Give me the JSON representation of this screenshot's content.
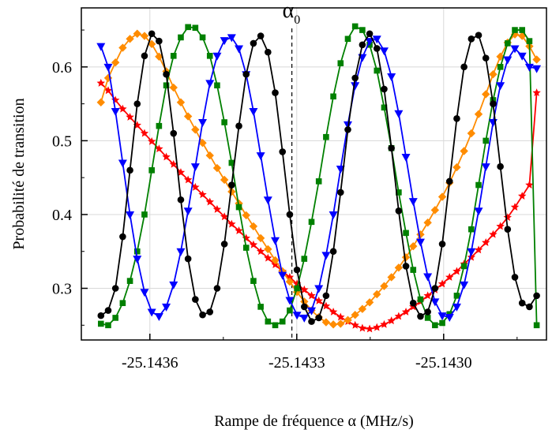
{
  "chart_data": {
    "type": "line",
    "xlabel": "Rampe de fréquence α  (MHz/s)",
    "ylabel": "Probabilité de transition",
    "xlim": [
      -25.14374,
      -25.14279
    ],
    "ylim": [
      0.23,
      0.68
    ],
    "x_ticks": [
      -25.1436,
      -25.1433,
      -25.143
    ],
    "x_tick_labels": [
      "-25.1436",
      "-25.1433",
      "-25.1430"
    ],
    "y_ticks": [
      0.3,
      0.4,
      0.5,
      0.6
    ],
    "y_tick_labels": [
      "0.3",
      "0.4",
      "0.5",
      "0.6"
    ],
    "grid": true,
    "annotation": {
      "symbol": "α",
      "subscript": "0",
      "x": -25.14331,
      "line_style": "dashed"
    },
    "x_range_data": [
      -25.1437,
      -25.14281
    ],
    "points_per_series": 61,
    "series": [
      {
        "color": "#ff0000",
        "marker": "star",
        "values": [
          0.578,
          0.568,
          0.555,
          0.543,
          0.532,
          0.521,
          0.51,
          0.499,
          0.489,
          0.478,
          0.468,
          0.457,
          0.447,
          0.437,
          0.427,
          0.417,
          0.407,
          0.397,
          0.387,
          0.378,
          0.368,
          0.359,
          0.35,
          0.341,
          0.332,
          0.323,
          0.315,
          0.306,
          0.298,
          0.29,
          0.283,
          0.276,
          0.268,
          0.261,
          0.255,
          0.25,
          0.246,
          0.245,
          0.247,
          0.251,
          0.256,
          0.262,
          0.268,
          0.275,
          0.282,
          0.29,
          0.298,
          0.306,
          0.315,
          0.323,
          0.333,
          0.342,
          0.352,
          0.362,
          0.373,
          0.384,
          0.396,
          0.41,
          0.425,
          0.44,
          0.565
        ]
      },
      {
        "color": "#ff8c00",
        "marker": "diamond",
        "values": [
          0.552,
          0.585,
          0.606,
          0.626,
          0.638,
          0.645,
          0.642,
          0.631,
          0.614,
          0.594,
          0.572,
          0.552,
          0.533,
          0.515,
          0.497,
          0.48,
          0.463,
          0.447,
          0.431,
          0.415,
          0.399,
          0.384,
          0.368,
          0.353,
          0.338,
          0.323,
          0.309,
          0.295,
          0.282,
          0.27,
          0.261,
          0.254,
          0.251,
          0.252,
          0.257,
          0.264,
          0.272,
          0.281,
          0.292,
          0.303,
          0.315,
          0.328,
          0.342,
          0.357,
          0.373,
          0.389,
          0.406,
          0.424,
          0.443,
          0.464,
          0.486,
          0.51,
          0.536,
          0.563,
          0.59,
          0.614,
          0.633,
          0.644,
          0.642,
          0.628,
          0.61
        ]
      },
      {
        "color": "#008000",
        "marker": "square",
        "values": [
          0.252,
          0.25,
          0.26,
          0.28,
          0.31,
          0.35,
          0.4,
          0.46,
          0.52,
          0.575,
          0.615,
          0.64,
          0.654,
          0.653,
          0.64,
          0.615,
          0.575,
          0.525,
          0.47,
          0.41,
          0.355,
          0.31,
          0.275,
          0.255,
          0.25,
          0.255,
          0.27,
          0.3,
          0.34,
          0.39,
          0.445,
          0.505,
          0.56,
          0.605,
          0.638,
          0.655,
          0.65,
          0.63,
          0.595,
          0.545,
          0.49,
          0.43,
          0.375,
          0.325,
          0.285,
          0.26,
          0.25,
          0.253,
          0.265,
          0.29,
          0.33,
          0.38,
          0.44,
          0.5,
          0.555,
          0.6,
          0.632,
          0.65,
          0.65,
          0.635,
          0.25
        ]
      },
      {
        "color": "#0000ff",
        "marker": "triangle-down",
        "values": [
          0.628,
          0.6,
          0.54,
          0.47,
          0.4,
          0.34,
          0.295,
          0.268,
          0.262,
          0.275,
          0.305,
          0.35,
          0.405,
          0.465,
          0.525,
          0.578,
          0.615,
          0.636,
          0.64,
          0.625,
          0.59,
          0.54,
          0.48,
          0.42,
          0.365,
          0.318,
          0.284,
          0.264,
          0.26,
          0.27,
          0.3,
          0.345,
          0.4,
          0.462,
          0.522,
          0.575,
          0.613,
          0.635,
          0.638,
          0.622,
          0.587,
          0.537,
          0.478,
          0.418,
          0.363,
          0.316,
          0.282,
          0.263,
          0.261,
          0.275,
          0.305,
          0.35,
          0.405,
          0.465,
          0.525,
          0.575,
          0.61,
          0.625,
          0.615,
          0.6,
          0.598
        ]
      },
      {
        "color": "#000000",
        "marker": "circle",
        "values": [
          0.263,
          0.27,
          0.3,
          0.37,
          0.46,
          0.55,
          0.615,
          0.645,
          0.635,
          0.59,
          0.51,
          0.42,
          0.34,
          0.285,
          0.264,
          0.268,
          0.3,
          0.36,
          0.44,
          0.52,
          0.59,
          0.632,
          0.642,
          0.62,
          0.565,
          0.485,
          0.4,
          0.325,
          0.275,
          0.255,
          0.26,
          0.29,
          0.35,
          0.43,
          0.515,
          0.585,
          0.63,
          0.645,
          0.625,
          0.57,
          0.49,
          0.405,
          0.33,
          0.28,
          0.262,
          0.268,
          0.3,
          0.36,
          0.445,
          0.53,
          0.6,
          0.638,
          0.643,
          0.612,
          0.55,
          0.465,
          0.38,
          0.315,
          0.28,
          0.275,
          0.29
        ]
      }
    ]
  }
}
